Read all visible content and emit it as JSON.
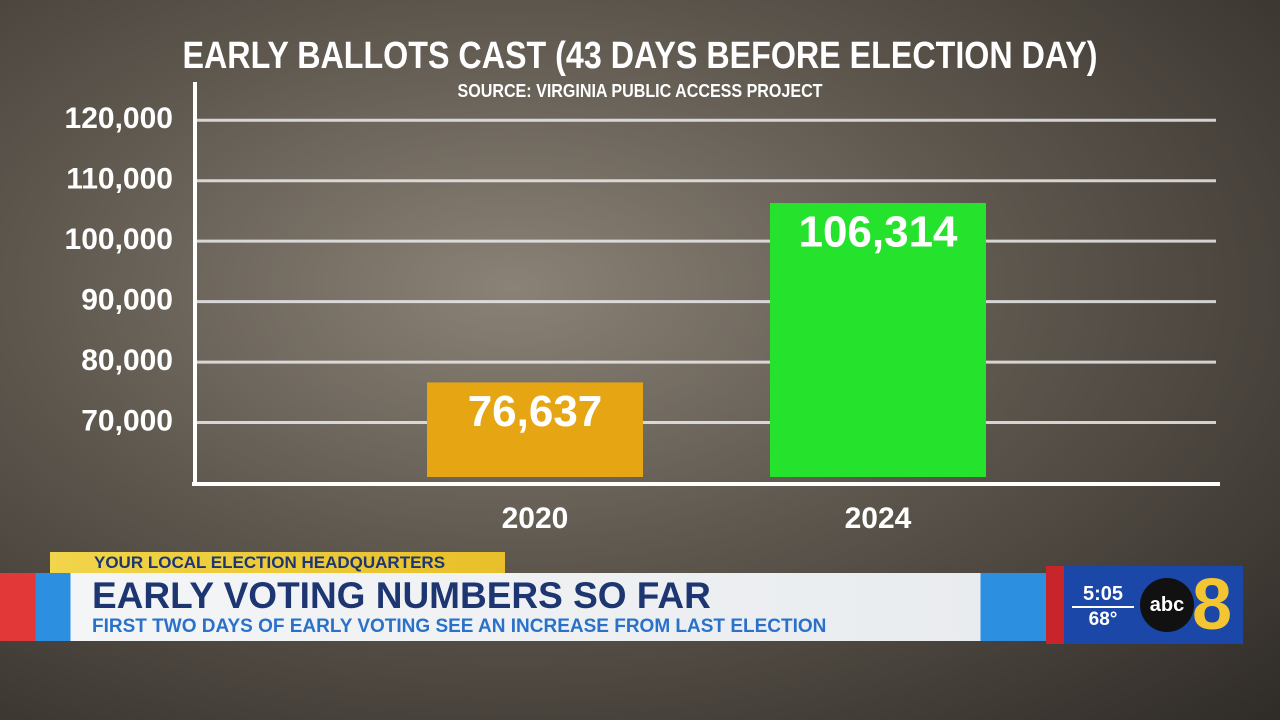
{
  "chart_data": {
    "type": "bar",
    "title": "EARLY BALLOTS CAST (43 DAYS BEFORE ELECTION DAY)",
    "subtitle": "SOURCE: VIRGINIA PUBLIC ACCESS PROJECT",
    "categories": [
      "2020",
      "2024"
    ],
    "values": [
      76637,
      106314
    ],
    "value_labels": [
      "76,637",
      "106,314"
    ],
    "colors": [
      "#e6a614",
      "#25e32c"
    ],
    "ylim": [
      60000,
      125000
    ],
    "yticks": [
      {
        "value": 70000,
        "label": "70,000"
      },
      {
        "value": 80000,
        "label": "80,000"
      },
      {
        "value": 90000,
        "label": "90,000"
      },
      {
        "value": 100000,
        "label": "100,000"
      },
      {
        "value": 110000,
        "label": "110,000"
      },
      {
        "value": 120000,
        "label": "120,000"
      }
    ],
    "grid": true
  },
  "lower_third": {
    "tag": "YOUR LOCAL ELECTION HEADQUARTERS",
    "headline": "EARLY VOTING NUMBERS SO FAR",
    "subhead": "FIRST TWO DAYS OF EARLY VOTING SEE AN INCREASE FROM LAST ELECTION",
    "time": "5:05",
    "temperature": "68°",
    "network": "abc",
    "channel": "8"
  }
}
